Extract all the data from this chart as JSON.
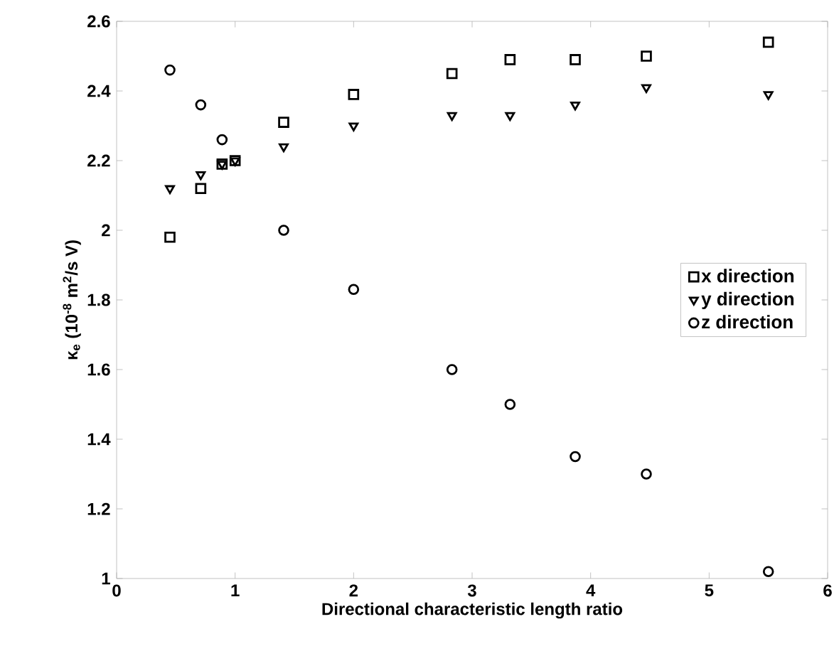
{
  "chart_data": {
    "type": "scatter",
    "xlabel": "Directional characteristic length ratio",
    "ylabel": "κ$_{e}$  (10$^{-8}$ m$^{2}$/s V)",
    "x": [
      0.45,
      0.71,
      0.89,
      1.0,
      1.41,
      2.0,
      2.83,
      3.32,
      3.87,
      4.47,
      5.5
    ],
    "series": [
      {
        "name": "x direction",
        "color": "#000000",
        "marker": "square",
        "values": [
          1.98,
          2.12,
          2.19,
          2.2,
          2.31,
          2.39,
          2.45,
          2.49,
          2.49,
          2.5,
          2.54
        ]
      },
      {
        "name": "y direction",
        "color": "#000000",
        "marker": "triangle",
        "values": [
          2.12,
          2.16,
          2.19,
          2.2,
          2.24,
          2.3,
          2.33,
          2.33,
          2.36,
          2.41,
          2.39
        ]
      },
      {
        "name": "z direction",
        "color": "#000000",
        "marker": "circle",
        "values": [
          2.46,
          2.36,
          2.26,
          null,
          2.0,
          1.83,
          1.6,
          1.5,
          1.35,
          1.3,
          1.02
        ]
      }
    ],
    "xlim": [
      0,
      6
    ],
    "ylim": [
      1,
      2.6
    ],
    "xticks": [
      0,
      1,
      2,
      3,
      4,
      5,
      6
    ],
    "yticks": [
      1,
      1.2,
      1.4,
      1.6,
      1.8,
      2,
      2.2,
      2.4,
      2.6
    ],
    "grid": false,
    "legend": "right"
  }
}
